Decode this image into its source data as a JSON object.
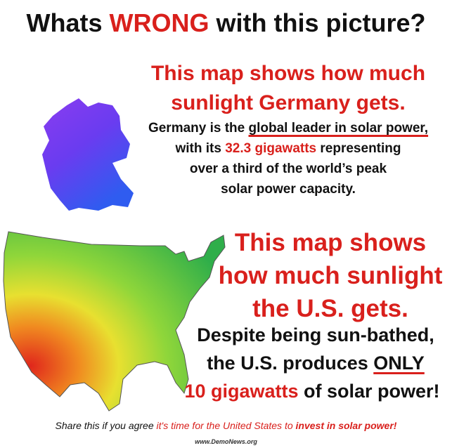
{
  "title": {
    "before": "Whats ",
    "highlight": "WRONG",
    "after": " with this picture?"
  },
  "germany": {
    "heading": [
      "This map shows how much",
      "sunlight Germany gets."
    ],
    "body": [
      [
        "Germany is the ",
        "global leader in solar power,"
      ],
      [
        "with its ",
        "32.3 gigawatts",
        " representing"
      ],
      [
        "over a third of the world’s peak"
      ],
      [
        "solar power capacity."
      ]
    ]
  },
  "us": {
    "heading": [
      "This map shows",
      "how much sunlight",
      "the U.S. gets."
    ],
    "body": [
      [
        "Despite being sun-bathed,"
      ],
      [
        "the U.S. produces ",
        "ONLY"
      ],
      [
        "10 gigawatts",
        " of solar power!"
      ]
    ]
  },
  "footer": [
    "Share this if you agree ",
    "it's time for the United States to ",
    "invest in solar power!"
  ],
  "source": "www.DemoNews.org"
}
